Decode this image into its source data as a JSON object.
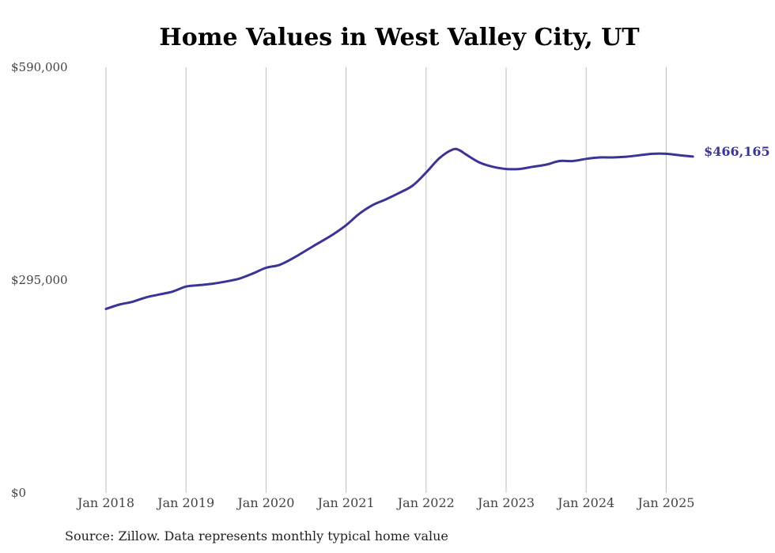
{
  "chart_data": {
    "type": "line",
    "title": "Home Values in West Valley City, UT",
    "source": "Source: Zillow. Data represents monthly typical home value",
    "ylim": [
      0,
      590000
    ],
    "y_ticks": [
      "$0",
      "$295,000",
      "$590,000"
    ],
    "y_tick_values": [
      0,
      295000,
      590000
    ],
    "x_ticks": [
      "Jan 2018",
      "Jan 2019",
      "Jan 2020",
      "Jan 2021",
      "Jan 2022",
      "Jan 2023",
      "Jan 2024",
      "Jan 2025"
    ],
    "x_start_year": 2018,
    "x_end_year": 2025.33,
    "grid": true,
    "line_color": "#3b3497",
    "end_label": "$466,165",
    "series": [
      {
        "x": [
          "2018-01",
          "2018-03",
          "2018-05",
          "2018-07",
          "2018-09",
          "2018-11",
          "2019-01",
          "2019-03",
          "2019-05",
          "2019-07",
          "2019-09",
          "2019-11",
          "2020-01",
          "2020-03",
          "2020-05",
          "2020-07",
          "2020-09",
          "2020-11",
          "2021-01",
          "2021-03",
          "2021-05",
          "2021-07",
          "2021-09",
          "2021-11",
          "2022-01",
          "2022-03",
          "2022-05",
          "2022-06",
          "2022-07",
          "2022-09",
          "2022-11",
          "2023-01",
          "2023-03",
          "2023-05",
          "2023-07",
          "2023-09",
          "2023-11",
          "2024-01",
          "2024-03",
          "2024-05",
          "2024-07",
          "2024-09",
          "2024-11",
          "2025-01",
          "2025-03",
          "2025-05"
        ],
        "values": [
          255000,
          261000,
          265000,
          271000,
          275000,
          279000,
          286000,
          288000,
          290000,
          293000,
          297000,
          304000,
          312000,
          316000,
          325000,
          336000,
          347000,
          358000,
          371000,
          387000,
          399000,
          407000,
          416000,
          426000,
          444000,
          464000,
          476000,
          475000,
          469000,
          458000,
          452000,
          449000,
          449000,
          452000,
          455000,
          460000,
          460000,
          463000,
          465000,
          465000,
          466000,
          468000,
          470000,
          470000,
          468000,
          466165
        ]
      }
    ]
  }
}
